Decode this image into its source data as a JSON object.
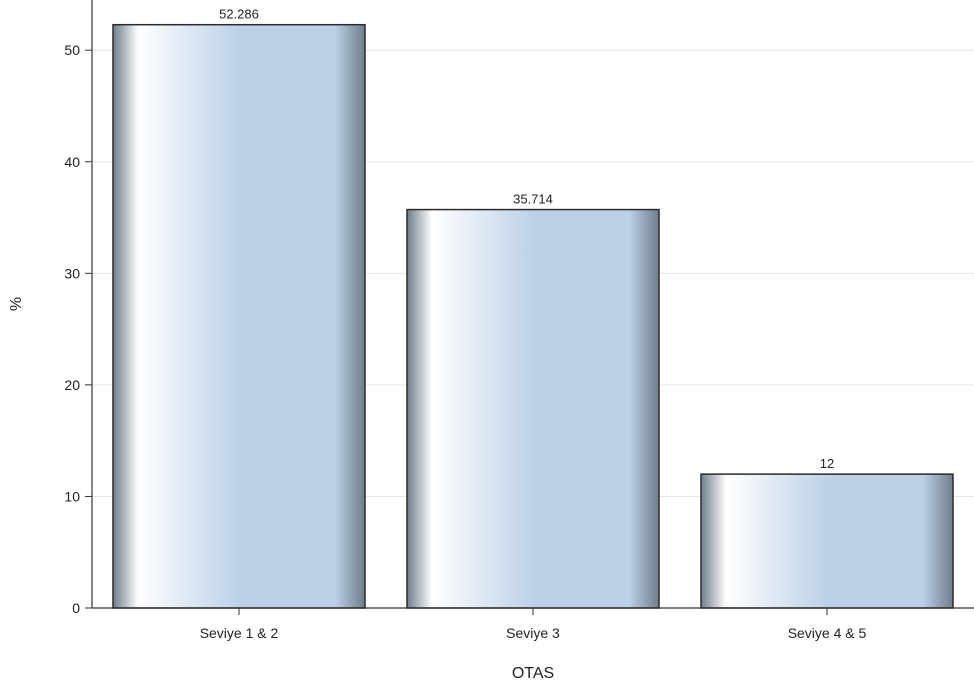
{
  "chart_data": {
    "type": "bar",
    "categories": [
      "Seviye 1 & 2",
      "Seviye 3",
      "Seviye 4 & 5"
    ],
    "values": [
      52.286,
      35.714,
      12
    ],
    "data_labels": [
      "52.286",
      "35.714",
      "12"
    ],
    "xlabel": "OTAS",
    "ylabel": "%",
    "ylim": [
      0,
      54.5
    ],
    "yticks": [
      0,
      10,
      20,
      30,
      40,
      50
    ],
    "ytick_labels": [
      "0",
      "10",
      "20",
      "30",
      "40",
      "50"
    ],
    "grid": true
  },
  "colors": {
    "bar_light": "#ffffff",
    "bar_mid": "#bcd1e8",
    "bar_dark": "#6f7d8c",
    "bar_outline": "#2b2b2b",
    "grid": "#e6e6e6",
    "axis": "#333333"
  }
}
